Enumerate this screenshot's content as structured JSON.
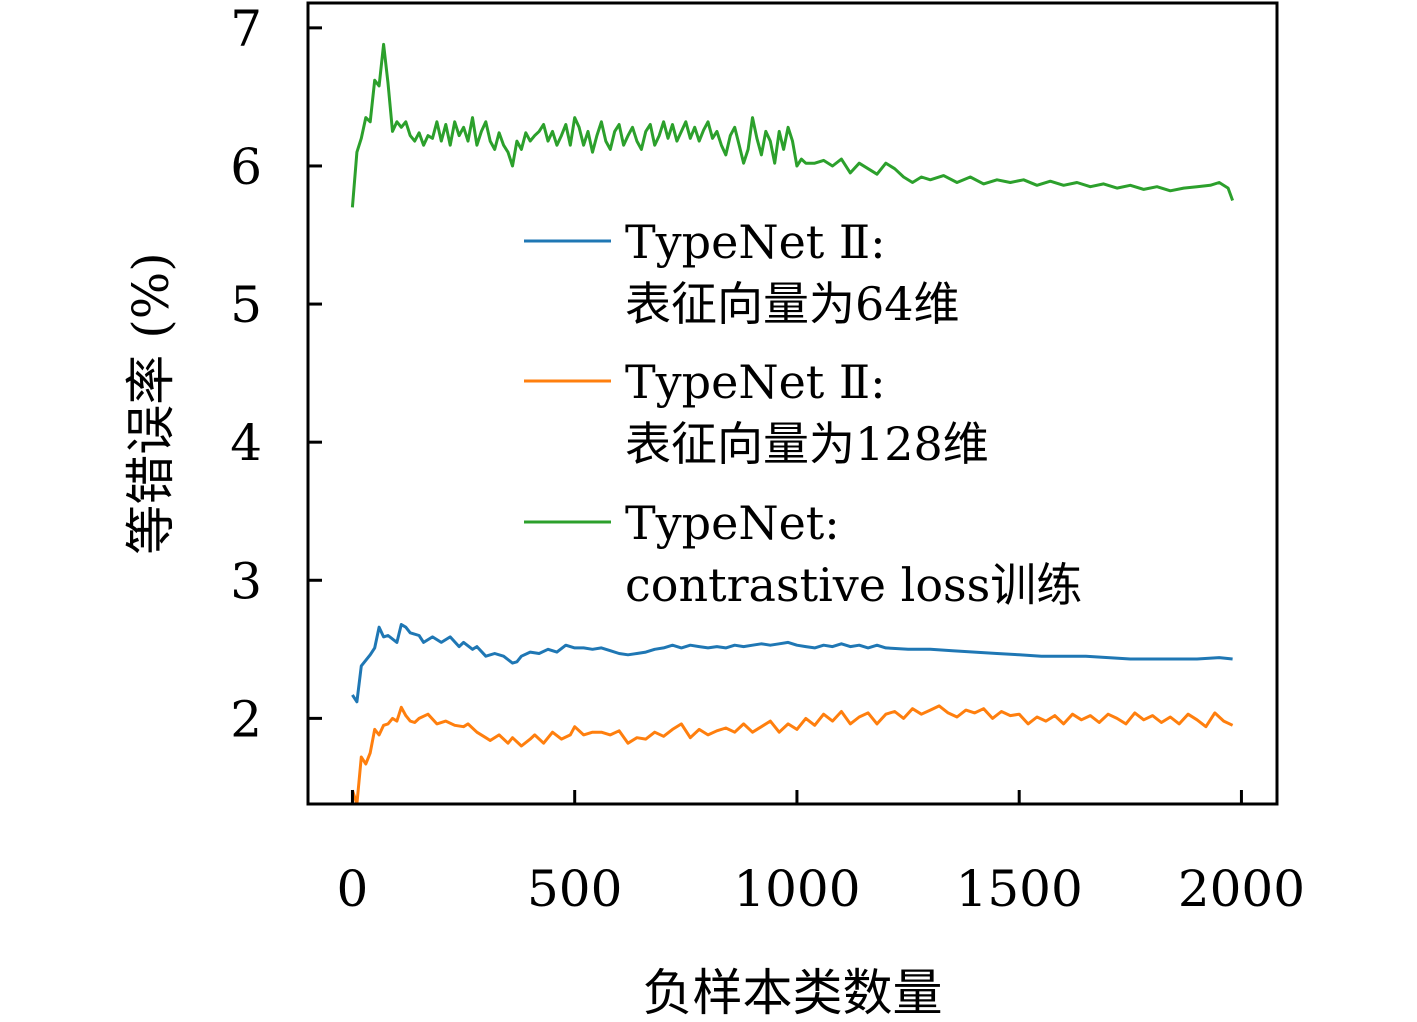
{
  "chart_data": {
    "type": "line",
    "xlabel": "负样本类数量",
    "ylabel": "等错误率 (%)",
    "xlim": [
      -100,
      2080
    ],
    "ylim": [
      1.38,
      7.18
    ],
    "xticks": [
      0,
      500,
      1000,
      1500,
      2000
    ],
    "yticks": [
      2,
      3,
      4,
      5,
      6,
      7
    ],
    "xtick_labels": [
      "0",
      "500",
      "1000",
      "1500",
      "2000"
    ],
    "ytick_labels": [
      "2",
      "3",
      "4",
      "5",
      "6",
      "7"
    ],
    "grid": false,
    "legend_position": "center-right",
    "series": [
      {
        "name_lines": [
          "TypeNet Ⅱ:",
          "表征向量为64维"
        ],
        "color": "#1f77b4",
        "x": [
          0,
          10,
          20,
          40,
          50,
          60,
          70,
          80,
          100,
          110,
          120,
          130,
          150,
          160,
          180,
          200,
          220,
          240,
          250,
          270,
          280,
          300,
          320,
          340,
          360,
          370,
          380,
          400,
          420,
          440,
          460,
          480,
          500,
          520,
          540,
          560,
          580,
          600,
          620,
          640,
          660,
          680,
          700,
          720,
          740,
          760,
          780,
          800,
          820,
          840,
          860,
          880,
          900,
          920,
          940,
          960,
          980,
          1000,
          1020,
          1040,
          1060,
          1080,
          1100,
          1120,
          1140,
          1160,
          1180,
          1200,
          1250,
          1300,
          1350,
          1400,
          1450,
          1500,
          1550,
          1600,
          1650,
          1700,
          1750,
          1800,
          1850,
          1900,
          1950,
          1980
        ],
        "y": [
          2.17,
          2.12,
          2.38,
          2.46,
          2.51,
          2.66,
          2.59,
          2.6,
          2.55,
          2.68,
          2.66,
          2.62,
          2.6,
          2.55,
          2.59,
          2.55,
          2.59,
          2.52,
          2.55,
          2.5,
          2.52,
          2.45,
          2.47,
          2.45,
          2.4,
          2.41,
          2.45,
          2.48,
          2.47,
          2.5,
          2.48,
          2.53,
          2.51,
          2.51,
          2.5,
          2.51,
          2.49,
          2.47,
          2.46,
          2.47,
          2.48,
          2.5,
          2.51,
          2.53,
          2.51,
          2.53,
          2.52,
          2.51,
          2.52,
          2.51,
          2.53,
          2.52,
          2.53,
          2.54,
          2.53,
          2.54,
          2.55,
          2.53,
          2.52,
          2.51,
          2.53,
          2.52,
          2.54,
          2.52,
          2.53,
          2.51,
          2.53,
          2.51,
          2.5,
          2.5,
          2.49,
          2.48,
          2.47,
          2.46,
          2.45,
          2.45,
          2.45,
          2.44,
          2.43,
          2.43,
          2.43,
          2.43,
          2.44,
          2.43
        ]
      },
      {
        "name_lines": [
          "TypeNet Ⅱ:",
          "表征向量为128维"
        ],
        "color": "#ff7f0e",
        "x": [
          0,
          10,
          20,
          30,
          40,
          50,
          60,
          70,
          80,
          90,
          100,
          110,
          120,
          130,
          140,
          150,
          170,
          190,
          210,
          230,
          250,
          260,
          280,
          300,
          310,
          330,
          350,
          360,
          380,
          400,
          410,
          430,
          450,
          470,
          490,
          500,
          520,
          540,
          560,
          580,
          600,
          620,
          640,
          660,
          680,
          700,
          720,
          740,
          760,
          780,
          800,
          820,
          840,
          860,
          880,
          900,
          920,
          940,
          960,
          980,
          1000,
          1020,
          1040,
          1060,
          1080,
          1100,
          1120,
          1140,
          1160,
          1180,
          1200,
          1220,
          1240,
          1260,
          1280,
          1300,
          1320,
          1340,
          1360,
          1380,
          1400,
          1420,
          1440,
          1460,
          1480,
          1500,
          1520,
          1540,
          1560,
          1580,
          1600,
          1620,
          1640,
          1660,
          1680,
          1700,
          1720,
          1740,
          1760,
          1780,
          1800,
          1820,
          1840,
          1860,
          1880,
          1900,
          1920,
          1940,
          1960,
          1980
        ],
        "y": [
          1.48,
          1.38,
          1.72,
          1.67,
          1.75,
          1.92,
          1.88,
          1.95,
          1.96,
          2.0,
          1.98,
          2.08,
          2.02,
          1.98,
          1.97,
          2.0,
          2.03,
          1.96,
          1.98,
          1.95,
          1.94,
          1.96,
          1.9,
          1.86,
          1.84,
          1.88,
          1.82,
          1.86,
          1.8,
          1.85,
          1.88,
          1.82,
          1.9,
          1.85,
          1.88,
          1.94,
          1.88,
          1.9,
          1.9,
          1.88,
          1.91,
          1.82,
          1.86,
          1.85,
          1.9,
          1.87,
          1.92,
          1.96,
          1.86,
          1.92,
          1.88,
          1.91,
          1.93,
          1.9,
          1.96,
          1.9,
          1.94,
          1.98,
          1.9,
          1.96,
          1.92,
          2.0,
          1.95,
          2.03,
          1.98,
          2.05,
          1.96,
          2.01,
          2.04,
          1.96,
          2.03,
          2.05,
          2.0,
          2.07,
          2.03,
          2.06,
          2.09,
          2.04,
          2.01,
          2.06,
          2.04,
          2.07,
          2.0,
          2.05,
          2.02,
          2.03,
          1.96,
          2.01,
          1.98,
          2.02,
          1.96,
          2.03,
          1.99,
          2.02,
          1.97,
          2.03,
          2.0,
          1.96,
          2.04,
          1.99,
          2.02,
          1.97,
          2.01,
          1.96,
          2.03,
          1.99,
          1.94,
          2.04,
          1.98,
          1.95
        ]
      },
      {
        "name_lines": [
          "TypeNet:",
          "contrastive loss训练"
        ],
        "color": "#2ca02c",
        "x": [
          0,
          10,
          20,
          30,
          40,
          50,
          60,
          70,
          80,
          90,
          100,
          110,
          120,
          130,
          140,
          150,
          160,
          170,
          180,
          190,
          200,
          210,
          220,
          230,
          240,
          250,
          260,
          270,
          280,
          290,
          300,
          310,
          320,
          330,
          340,
          350,
          360,
          370,
          380,
          390,
          400,
          410,
          420,
          430,
          440,
          450,
          460,
          470,
          480,
          490,
          500,
          510,
          520,
          530,
          540,
          550,
          560,
          570,
          580,
          590,
          600,
          610,
          620,
          630,
          640,
          650,
          660,
          670,
          680,
          690,
          700,
          710,
          720,
          730,
          740,
          750,
          760,
          770,
          780,
          790,
          800,
          810,
          820,
          830,
          840,
          850,
          860,
          870,
          880,
          890,
          900,
          910,
          920,
          930,
          940,
          950,
          960,
          970,
          980,
          990,
          1000,
          1010,
          1020,
          1040,
          1060,
          1080,
          1100,
          1120,
          1140,
          1160,
          1180,
          1200,
          1220,
          1240,
          1260,
          1280,
          1300,
          1330,
          1360,
          1390,
          1420,
          1450,
          1480,
          1510,
          1540,
          1570,
          1600,
          1630,
          1660,
          1690,
          1720,
          1750,
          1780,
          1810,
          1840,
          1870,
          1900,
          1930,
          1950,
          1970,
          1980
        ],
        "y": [
          5.7,
          6.1,
          6.2,
          6.35,
          6.32,
          6.62,
          6.58,
          6.88,
          6.6,
          6.25,
          6.32,
          6.28,
          6.32,
          6.22,
          6.18,
          6.24,
          6.15,
          6.22,
          6.2,
          6.32,
          6.18,
          6.3,
          6.15,
          6.32,
          6.22,
          6.28,
          6.18,
          6.35,
          6.15,
          6.25,
          6.32,
          6.18,
          6.12,
          6.24,
          6.15,
          6.1,
          6.0,
          6.18,
          6.12,
          6.24,
          6.18,
          6.22,
          6.25,
          6.3,
          6.18,
          6.25,
          6.15,
          6.22,
          6.3,
          6.15,
          6.35,
          6.28,
          6.15,
          6.25,
          6.1,
          6.22,
          6.32,
          6.18,
          6.12,
          6.25,
          6.3,
          6.15,
          6.22,
          6.28,
          6.18,
          6.12,
          6.25,
          6.3,
          6.15,
          6.22,
          6.32,
          6.2,
          6.3,
          6.18,
          6.25,
          6.32,
          6.2,
          6.28,
          6.18,
          6.26,
          6.32,
          6.2,
          6.25,
          6.15,
          6.08,
          6.22,
          6.28,
          6.15,
          6.02,
          6.12,
          6.35,
          6.2,
          6.08,
          6.25,
          6.18,
          6.02,
          6.25,
          6.12,
          6.28,
          6.18,
          6.0,
          6.05,
          6.02,
          6.02,
          6.04,
          6.0,
          6.05,
          5.95,
          6.02,
          5.98,
          5.94,
          6.02,
          5.98,
          5.92,
          5.88,
          5.92,
          5.9,
          5.93,
          5.88,
          5.92,
          5.87,
          5.9,
          5.88,
          5.9,
          5.86,
          5.89,
          5.86,
          5.88,
          5.85,
          5.87,
          5.84,
          5.86,
          5.83,
          5.85,
          5.82,
          5.84,
          5.85,
          5.86,
          5.88,
          5.84,
          5.75
        ]
      }
    ]
  }
}
